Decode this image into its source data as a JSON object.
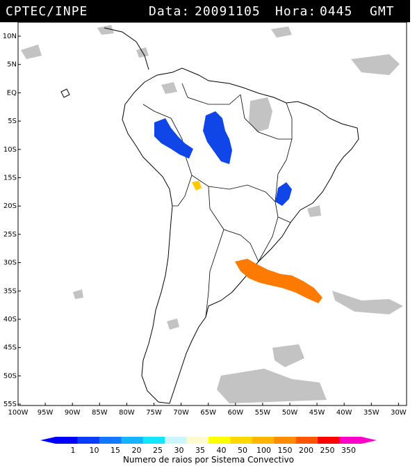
{
  "header": {
    "source": "CPTEC/INPE",
    "date_label": "Data:",
    "date_value": "20091105",
    "hour_label": "Hora:",
    "hour_value": "0445",
    "tz": "GMT"
  },
  "map": {
    "lon_ticks": [
      "100W",
      "95W",
      "90W",
      "85W",
      "80W",
      "75W",
      "70W",
      "65W",
      "60W",
      "55W",
      "50W",
      "45W",
      "40W",
      "35W",
      "30W"
    ],
    "lat_ticks": [
      "10N",
      "5N",
      "EQ",
      "5S",
      "10S",
      "15S",
      "20S",
      "25S",
      "30S",
      "35S",
      "40S",
      "45S",
      "50S",
      "55S"
    ],
    "lon_range": [
      -100,
      -27
    ],
    "lat_range": [
      -56,
      13
    ]
  },
  "legend": {
    "labels": [
      "1",
      "10",
      "15",
      "20",
      "25",
      "30",
      "35",
      "40",
      "50",
      "100",
      "150",
      "200",
      "250",
      "350"
    ],
    "colors": [
      "#0000ff",
      "#0a3cff",
      "#1478ff",
      "#16b4ff",
      "#14e6ff",
      "#cdf5ff",
      "#fffad0",
      "#ffff00",
      "#ffd700",
      "#ffb400",
      "#ff8c00",
      "#ff5500",
      "#ff0000",
      "#ff00c8"
    ],
    "caption": "Numero de raios por Sistema Convectivo"
  },
  "colors": {
    "clouds": "#bdbdbd",
    "blue_systems": "#1046e8",
    "orange_system": "#ff7a00",
    "yellow_system": "#ffc800"
  }
}
